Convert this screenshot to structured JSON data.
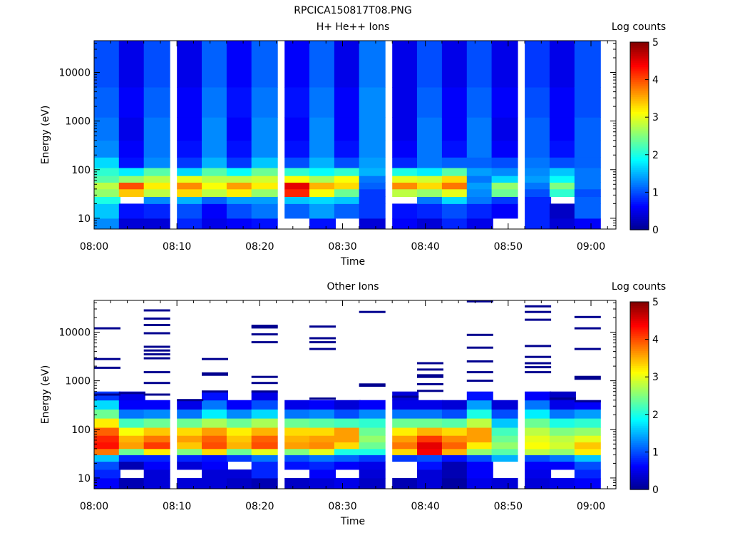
{
  "page": {
    "figure_title": "RPCICA150817T08.PNG"
  },
  "colors": {
    "colormap": [
      "#00008f",
      "#0000ff",
      "#0080ff",
      "#00ffff",
      "#80ff80",
      "#ffff00",
      "#ff8000",
      "#ff0000",
      "#800000"
    ],
    "background": "#ffffff",
    "frame": "#000000"
  },
  "chart_data": [
    {
      "type": "heatmap",
      "title": "H+ He++ Ions",
      "xlabel": "Time",
      "ylabel": "Energy (eV)",
      "x_ticks": [
        "08:00",
        "08:10",
        "08:20",
        "08:30",
        "08:40",
        "08:50",
        "09:00"
      ],
      "y_ticks": [
        "10",
        "100",
        "1000",
        "10000"
      ],
      "y_scale": "log",
      "ylim": [
        6,
        45000
      ],
      "colorbar": {
        "label": "Log counts",
        "ticks": [
          "0",
          "1",
          "2",
          "3",
          "4",
          "5"
        ],
        "range": [
          0,
          5
        ]
      },
      "time_bins": [
        "08:00",
        "08:03",
        "08:06",
        "08:10",
        "08:13",
        "08:16",
        "08:19",
        "08:23",
        "08:26",
        "08:29",
        "08:32",
        "08:36",
        "08:39",
        "08:42",
        "08:45",
        "08:48",
        "08:52",
        "08:55",
        "08:58"
      ],
      "energy_bands": [
        {
          "e_low": 6,
          "e_high": 10,
          "values": [
            1.3,
            0.4,
            0.4,
            0.8,
            0.5,
            0.6,
            0.7,
            null,
            0.7,
            null,
            0.4,
            0.6,
            0.4,
            0.8,
            0.5,
            null,
            0.8,
            0.4,
            0.6
          ]
        },
        {
          "e_low": 10,
          "e_high": 20,
          "values": [
            1.6,
            0.7,
            0.8,
            1.0,
            0.6,
            1.0,
            1.2,
            1.1,
            1.4,
            1.1,
            0.9,
            0.7,
            0.8,
            1.0,
            0.8,
            0.6,
            0.8,
            0.3,
            1.1
          ]
        },
        {
          "e_low": 20,
          "e_high": 28,
          "values": [
            2.0,
            null,
            1.3,
            1.5,
            1.1,
            1.4,
            1.4,
            1.6,
            1.7,
            1.6,
            0.9,
            null,
            1.2,
            1.7,
            1.2,
            0.9,
            0.8,
            null,
            1.1
          ]
        },
        {
          "e_low": 28,
          "e_high": 40,
          "values": [
            2.6,
            3.4,
            2.8,
            3.3,
            2.8,
            3.2,
            2.6,
            4.2,
            3.1,
            2.4,
            0.9,
            2.8,
            2.6,
            3.0,
            1.3,
            2.4,
            1.0,
            2.1,
            1.0
          ]
        },
        {
          "e_low": 40,
          "e_high": 55,
          "values": [
            2.8,
            4.0,
            3.2,
            3.7,
            3.1,
            3.6,
            3.2,
            4.5,
            3.5,
            3.3,
            1.1,
            3.7,
            3.3,
            3.8,
            1.4,
            2.6,
            1.2,
            2.5,
            1.2
          ]
        },
        {
          "e_low": 55,
          "e_high": 75,
          "values": [
            2.3,
            2.6,
            2.8,
            3.0,
            2.8,
            2.8,
            2.9,
            3.1,
            2.7,
            3.1,
            1.2,
            3.0,
            2.9,
            3.3,
            1.2,
            1.7,
            1.4,
            1.9,
            1.2
          ]
        },
        {
          "e_low": 75,
          "e_high": 110,
          "values": [
            2.1,
            1.8,
            2.3,
            1.7,
            2.3,
            1.9,
            2.4,
            2.1,
            1.9,
            2.1,
            1.5,
            2.0,
            1.8,
            2.3,
            1.4,
            1.3,
            1.3,
            1.6,
            1.2
          ]
        },
        {
          "e_low": 110,
          "e_high": 180,
          "values": [
            1.7,
            0.7,
            1.3,
            0.9,
            1.5,
            0.9,
            1.6,
            1.0,
            1.5,
            1.0,
            1.4,
            0.8,
            1.2,
            1.1,
            1.1,
            1.0,
            1.2,
            1.0,
            1.1
          ]
        },
        {
          "e_low": 180,
          "e_high": 400,
          "values": [
            1.3,
            0.6,
            1.2,
            0.7,
            1.3,
            0.7,
            1.3,
            0.7,
            1.3,
            0.7,
            1.3,
            0.6,
            1.2,
            0.7,
            1.2,
            0.6,
            1.1,
            0.7,
            1.1
          ]
        },
        {
          "e_low": 400,
          "e_high": 1200,
          "values": [
            1.2,
            0.5,
            1.2,
            0.6,
            1.3,
            0.6,
            1.3,
            0.6,
            1.3,
            0.6,
            1.3,
            0.5,
            1.2,
            0.6,
            1.2,
            0.5,
            1.1,
            0.6,
            1.1
          ]
        },
        {
          "e_low": 1200,
          "e_high": 5000,
          "values": [
            1.1,
            0.6,
            1.1,
            0.6,
            1.2,
            0.7,
            1.2,
            0.7,
            1.2,
            0.6,
            1.3,
            0.5,
            1.1,
            0.6,
            1.1,
            0.6,
            1.0,
            0.6,
            1.0
          ]
        },
        {
          "e_low": 5000,
          "e_high": 45000,
          "values": [
            1.0,
            0.5,
            1.0,
            0.5,
            1.1,
            0.6,
            1.1,
            0.6,
            1.1,
            0.5,
            1.2,
            0.5,
            1.0,
            0.5,
            1.0,
            0.5,
            0.9,
            0.5,
            1.0
          ]
        }
      ]
    },
    {
      "type": "heatmap",
      "title": "Other Ions",
      "xlabel": "Time",
      "ylabel": "Energy (eV)",
      "x_ticks": [
        "08:00",
        "08:10",
        "08:20",
        "08:30",
        "08:40",
        "08:50",
        "09:00"
      ],
      "y_ticks": [
        "10",
        "100",
        "1000",
        "10000"
      ],
      "y_scale": "log",
      "ylim": [
        6,
        45000
      ],
      "colorbar": {
        "label": "Log counts",
        "ticks": [
          "0",
          "1",
          "2",
          "3",
          "4",
          "5"
        ],
        "range": [
          0,
          5
        ]
      },
      "time_bins": [
        "08:00",
        "08:03",
        "08:06",
        "08:10",
        "08:13",
        "08:16",
        "08:19",
        "08:23",
        "08:26",
        "08:29",
        "08:32",
        "08:36",
        "08:39",
        "08:42",
        "08:45",
        "08:48",
        "08:52",
        "08:55",
        "08:58"
      ],
      "energy_bands": [
        {
          "e_low": 6,
          "e_high": 10,
          "values": [
            0.6,
            0.2,
            0.4,
            0.4,
            0.4,
            0.3,
            0.2,
            0.3,
            0.4,
            0.5,
            0.3,
            0.2,
            0.4,
            0.1,
            0.5,
            0.4,
            0.4,
            0.5,
            0.6
          ]
        },
        {
          "e_low": 10,
          "e_high": 15,
          "values": [
            0.8,
            null,
            0.4,
            null,
            0.4,
            0.4,
            0.8,
            null,
            0.6,
            null,
            0.4,
            null,
            0.4,
            0.2,
            0.6,
            null,
            0.5,
            null,
            0.8
          ]
        },
        {
          "e_low": 15,
          "e_high": 22,
          "values": [
            1.0,
            0.2,
            0.6,
            0.4,
            0.6,
            null,
            0.8,
            0.7,
            0.8,
            0.6,
            0.5,
            null,
            0.7,
            0.2,
            0.6,
            null,
            0.6,
            0.6,
            1.0
          ]
        },
        {
          "e_low": 22,
          "e_high": 30,
          "values": [
            1.6,
            0.8,
            0.8,
            0.8,
            0.7,
            0.9,
            1.2,
            1.0,
            1.2,
            1.1,
            0.9,
            0.9,
            1.0,
            0.7,
            1.0,
            1.5,
            1.0,
            1.2,
            1.6
          ]
        },
        {
          "e_low": 30,
          "e_high": 40,
          "values": [
            3.8,
            2.4,
            3.2,
            2.5,
            3.3,
            2.4,
            3.0,
            2.5,
            3.0,
            2.0,
            2.0,
            3.3,
            4.4,
            3.5,
            2.6,
            2.3,
            2.8,
            2.6,
            3.2
          ]
        },
        {
          "e_low": 40,
          "e_high": 55,
          "values": [
            4.3,
            3.6,
            4.1,
            3.4,
            4.0,
            3.5,
            4.0,
            3.6,
            3.7,
            3.3,
            2.4,
            3.8,
            4.5,
            3.9,
            3.2,
            2.6,
            3.1,
            2.9,
            3.4
          ]
        },
        {
          "e_low": 55,
          "e_high": 75,
          "values": [
            4.2,
            3.5,
            3.8,
            3.6,
            3.9,
            3.4,
            3.9,
            3.5,
            3.6,
            3.6,
            2.6,
            3.6,
            4.1,
            3.7,
            3.6,
            2.4,
            3.0,
            2.8,
            3.0
          ]
        },
        {
          "e_low": 75,
          "e_high": 110,
          "values": [
            3.9,
            3.1,
            3.4,
            3.3,
            3.6,
            3.2,
            3.5,
            3.3,
            3.3,
            3.6,
            2.4,
            3.2,
            3.5,
            3.3,
            3.6,
            2.2,
            2.8,
            2.5,
            2.6
          ]
        },
        {
          "e_low": 110,
          "e_high": 170,
          "values": [
            3.2,
            2.2,
            2.4,
            2.4,
            2.7,
            2.4,
            2.7,
            2.4,
            2.3,
            2.2,
            2.1,
            2.4,
            2.4,
            2.3,
            2.8,
            1.6,
            2.4,
            2.0,
            2.1
          ]
        },
        {
          "e_low": 170,
          "e_high": 260,
          "values": [
            2.4,
            1.2,
            1.3,
            1.2,
            1.8,
            1.3,
            1.7,
            1.2,
            1.3,
            1.0,
            1.3,
            1.2,
            1.2,
            1.0,
            2.0,
            1.0,
            1.8,
            1.2,
            1.4
          ]
        },
        {
          "e_low": 260,
          "e_high": 400,
          "values": [
            1.7,
            0.6,
            0.6,
            0.5,
            1.2,
            0.6,
            1.0,
            0.5,
            0.6,
            0.4,
            0.6,
            0.5,
            0.5,
            0.4,
            1.4,
            0.4,
            1.2,
            0.5,
            0.6
          ]
        },
        {
          "e_low": 400,
          "e_high": 600,
          "values": [
            0.9,
            0.5,
            null,
            null,
            0.7,
            null,
            0.5,
            null,
            null,
            null,
            null,
            0.4,
            null,
            null,
            0.7,
            null,
            0.6,
            0.3,
            null
          ]
        }
      ],
      "sparse_lines": [
        {
          "bin": 0,
          "energies": [
            12000,
            2800,
            1850,
            520
          ]
        },
        {
          "bin": 1,
          "energies": [
            560
          ]
        },
        {
          "bin": 2,
          "energies": [
            28000,
            19000,
            14000,
            9500,
            5000,
            4200,
            3500,
            2900,
            1500,
            900,
            520
          ]
        },
        {
          "bin": 3,
          "energies": [
            400
          ]
        },
        {
          "bin": 4,
          "energies": [
            2800,
            1420,
            1330,
            600
          ]
        },
        {
          "bin": 6,
          "energies": [
            13500,
            12500,
            9000,
            6200,
            1200,
            900,
            600
          ]
        },
        {
          "bin": 8,
          "energies": [
            13000,
            7500,
            6200,
            4500,
            430
          ]
        },
        {
          "bin": 10,
          "energies": [
            26000,
            840,
            790
          ]
        },
        {
          "bin": 11,
          "energies": [
            470
          ]
        },
        {
          "bin": 12,
          "energies": [
            2300,
            1700,
            1300,
            1200,
            850,
            620
          ]
        },
        {
          "bin": 14,
          "energies": [
            43000,
            8800,
            4800,
            2500,
            1500,
            1000
          ]
        },
        {
          "bin": 16,
          "energies": [
            34000,
            26000,
            18000,
            5200,
            3100,
            2300,
            1900,
            1500
          ]
        },
        {
          "bin": 17,
          "energies": [
            430
          ]
        },
        {
          "bin": 18,
          "energies": [
            20500,
            12000,
            4500,
            1200,
            1100,
            380
          ]
        }
      ]
    }
  ]
}
